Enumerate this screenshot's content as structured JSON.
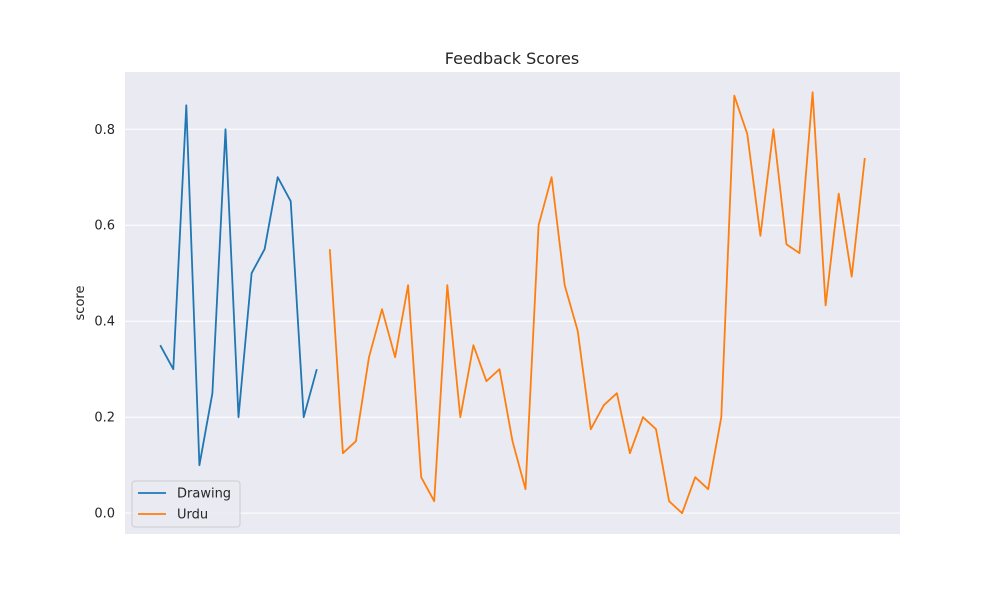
{
  "chart_data": {
    "type": "line",
    "title": "Feedback Scores",
    "xlabel": "",
    "ylabel": "score",
    "ylim": [
      -0.0434,
      0.9193
    ],
    "yticks": [
      0.0,
      0.2,
      0.4,
      0.6,
      0.8
    ],
    "ytick_labels": [
      "0.0",
      "0.2",
      "0.4",
      "0.6",
      "0.8"
    ],
    "x_tick_labels_visible": false,
    "grid": true,
    "background": "#eaeaf2",
    "legend_position": "lower-left",
    "series": [
      {
        "name": "Drawing",
        "color": "#1f77b4",
        "x": [
          0,
          1,
          2,
          3,
          4,
          5,
          6,
          7,
          8,
          9,
          10,
          11,
          12
        ],
        "values": [
          0.35,
          0.3,
          0.85,
          0.1,
          0.25,
          0.8,
          0.2,
          0.5,
          0.55,
          0.7,
          0.65,
          0.2,
          0.3
        ]
      },
      {
        "name": "Urdu",
        "color": "#ff7f0e",
        "x": [
          13,
          14,
          15,
          16,
          17,
          18,
          19,
          20,
          21,
          22,
          23,
          24,
          25,
          26,
          27,
          28,
          29,
          30,
          31,
          32,
          33,
          34,
          35,
          36,
          37,
          38,
          39,
          40,
          41,
          42,
          43,
          44,
          45,
          46,
          47,
          48,
          49,
          50,
          51,
          52,
          53,
          54
        ],
        "values": [
          0.55,
          0.125,
          0.15,
          0.325,
          0.425,
          0.325,
          0.475,
          0.075,
          0.025,
          0.475,
          0.2,
          0.35,
          0.275,
          0.3,
          0.15,
          0.05,
          0.6,
          0.7,
          0.475,
          0.38,
          0.175,
          0.225,
          0.25,
          0.125,
          0.2,
          0.175,
          0.025,
          0.0,
          0.075,
          0.05,
          0.2,
          0.87,
          0.79,
          0.578,
          0.8,
          0.56,
          0.542,
          0.877,
          0.433,
          0.666,
          0.493,
          0.74
        ]
      }
    ]
  }
}
